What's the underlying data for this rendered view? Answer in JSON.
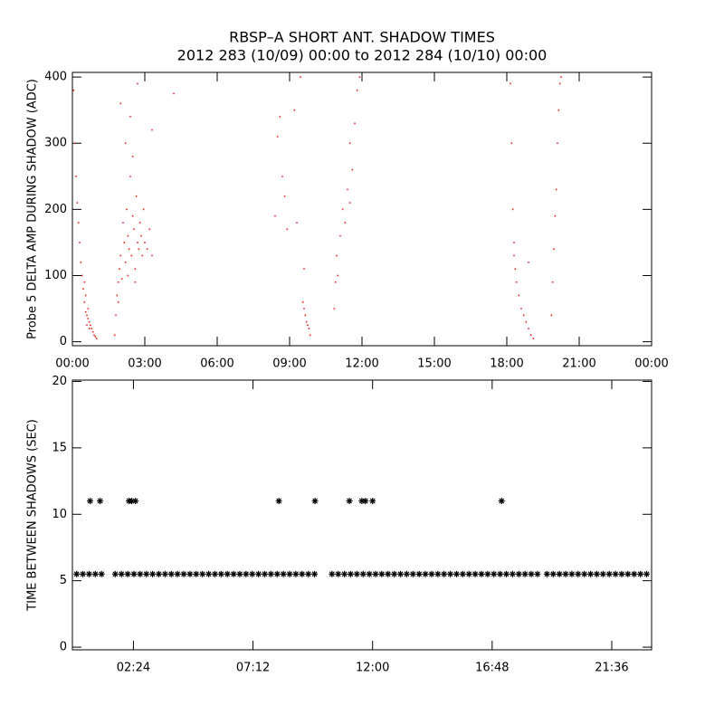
{
  "chart_data": [
    {
      "type": "scatter",
      "title": "RBSP–A SHORT ANT. SHADOW TIMES",
      "subtitle": "2012 283 (10/09) 00:00 to 2012 284 (10/10) 00:00",
      "y_label": "Probe 5 DELTA AMP DURING SHADOW (ADC)",
      "xlim": [
        0,
        24
      ],
      "ylim": [
        -6,
        407
      ],
      "xticks": [
        {
          "value": 0,
          "label": "00:00"
        },
        {
          "value": 3,
          "label": "03:00"
        },
        {
          "value": 6,
          "label": "06:00"
        },
        {
          "value": 9,
          "label": "09:00"
        },
        {
          "value": 12,
          "label": "12:00"
        },
        {
          "value": 15,
          "label": "15:00"
        },
        {
          "value": 18,
          "label": "18:00"
        },
        {
          "value": 21,
          "label": "21:00"
        },
        {
          "value": 24,
          "label": "00:00"
        }
      ],
      "yticks": [
        0,
        100,
        200,
        300,
        400
      ],
      "marker": "dot",
      "series": [
        {
          "color": "#e8261c",
          "x": [
            0.05,
            0.1,
            0.15,
            0.2,
            0.25,
            0.3,
            0.35,
            0.4,
            0.45,
            0.5,
            0.55,
            0.6,
            0.65,
            0.7,
            0.75,
            0.8,
            0.85,
            0.9,
            0.95,
            1.0,
            0.5,
            0.55,
            0.65,
            0.7,
            0.6,
            1.75,
            1.8,
            1.85,
            1.9,
            1.95,
            2.0,
            2.05,
            2.1,
            2.15,
            2.2,
            2.25,
            2.3,
            2.35,
            2.4,
            2.45,
            2.5,
            2.55,
            2.6,
            2.65,
            2.7,
            2.75,
            2.8,
            2.85,
            2.9,
            2.95,
            3.0,
            3.1,
            3.2,
            3.3,
            2.0,
            2.2,
            2.4,
            2.5,
            2.7,
            3.3,
            1.9,
            2.3,
            2.6,
            4.2,
            8.4,
            8.5,
            8.6,
            8.7,
            8.8,
            8.9,
            9.2,
            9.3,
            9.45,
            9.55,
            9.6,
            9.65,
            9.7,
            9.75,
            9.8,
            9.85,
            9.6,
            10.85,
            10.9,
            10.95,
            11.0,
            11.1,
            11.2,
            11.3,
            11.4,
            11.5,
            11.6,
            11.7,
            11.8,
            11.9,
            11.5,
            18.15,
            18.2,
            18.25,
            18.3,
            18.35,
            18.4,
            18.5,
            18.6,
            18.7,
            18.8,
            18.9,
            19.0,
            19.1,
            18.3,
            18.9,
            19.85,
            19.9,
            19.95,
            20.0,
            20.05,
            20.1,
            20.15,
            20.2,
            20.25
          ],
          "values": [
            380,
            300,
            250,
            210,
            180,
            150,
            120,
            100,
            80,
            60,
            45,
            40,
            35,
            30,
            25,
            20,
            15,
            10,
            8,
            5,
            90,
            70,
            50,
            20,
            25,
            10,
            40,
            70,
            90,
            110,
            130,
            95,
            180,
            150,
            120,
            200,
            160,
            140,
            250,
            130,
            190,
            170,
            110,
            220,
            150,
            140,
            180,
            160,
            130,
            200,
            150,
            140,
            170,
            130,
            360,
            300,
            340,
            280,
            390,
            320,
            60,
            100,
            90,
            375,
            190,
            310,
            340,
            250,
            220,
            170,
            350,
            180,
            400,
            60,
            50,
            40,
            30,
            25,
            20,
            10,
            110,
            50,
            90,
            130,
            100,
            160,
            200,
            180,
            230,
            210,
            260,
            330,
            380,
            400,
            300,
            390,
            300,
            200,
            130,
            110,
            90,
            70,
            50,
            40,
            30,
            20,
            10,
            5,
            150,
            120,
            40,
            90,
            140,
            190,
            230,
            300,
            350,
            390,
            400
          ]
        }
      ]
    },
    {
      "type": "scatter",
      "y_label": "TIME BETWEEN SHADOWS (SEC)",
      "xlim": [
        -0.05,
        23.2
      ],
      "ylim": [
        -0.2,
        20.1
      ],
      "xticks": [
        {
          "value": 2.4,
          "label": "02:24"
        },
        {
          "value": 7.2,
          "label": "07:12"
        },
        {
          "value": 12,
          "label": "12:00"
        },
        {
          "value": 16.8,
          "label": "16:48"
        },
        {
          "value": 21.6,
          "label": "21:36"
        }
      ],
      "yticks": [
        0,
        5,
        10,
        15,
        20
      ],
      "marker": "asterisk",
      "series": [
        {
          "color": "#000000",
          "x": [
            0.12,
            0.37,
            0.62,
            0.87,
            1.12,
            1.67,
            1.92,
            2.17,
            2.42,
            2.67,
            2.92,
            3.17,
            3.42,
            3.67,
            3.92,
            4.17,
            4.42,
            4.67,
            4.92,
            5.17,
            5.42,
            5.67,
            5.92,
            6.17,
            6.42,
            6.67,
            6.92,
            7.17,
            7.42,
            7.67,
            7.92,
            8.17,
            8.42,
            8.67,
            8.92,
            9.17,
            9.42,
            9.67,
            10.37,
            10.62,
            10.87,
            11.12,
            11.37,
            11.62,
            11.87,
            12.12,
            12.37,
            12.62,
            12.87,
            13.12,
            13.37,
            13.62,
            13.87,
            14.12,
            14.37,
            14.62,
            14.87,
            15.12,
            15.37,
            15.62,
            15.87,
            16.12,
            16.37,
            16.62,
            16.87,
            17.12,
            17.37,
            17.62,
            17.87,
            18.12,
            18.37,
            18.62,
            19.0,
            19.25,
            19.5,
            19.75,
            20.0,
            20.25,
            20.5,
            20.75,
            21.0,
            21.25,
            21.5,
            21.75,
            22.0,
            22.25,
            22.5,
            22.75,
            23.0,
            0.66,
            1.06,
            2.22,
            2.33,
            2.48,
            8.24,
            9.69,
            11.07,
            11.57,
            11.71,
            12.0,
            17.18
          ],
          "values": [
            5.5,
            5.5,
            5.5,
            5.5,
            5.5,
            5.5,
            5.5,
            5.5,
            5.5,
            5.5,
            5.5,
            5.5,
            5.5,
            5.5,
            5.5,
            5.5,
            5.5,
            5.5,
            5.5,
            5.5,
            5.5,
            5.5,
            5.5,
            5.5,
            5.5,
            5.5,
            5.5,
            5.5,
            5.5,
            5.5,
            5.5,
            5.5,
            5.5,
            5.5,
            5.5,
            5.5,
            5.5,
            5.5,
            5.5,
            5.5,
            5.5,
            5.5,
            5.5,
            5.5,
            5.5,
            5.5,
            5.5,
            5.5,
            5.5,
            5.5,
            5.5,
            5.5,
            5.5,
            5.5,
            5.5,
            5.5,
            5.5,
            5.5,
            5.5,
            5.5,
            5.5,
            5.5,
            5.5,
            5.5,
            5.5,
            5.5,
            5.5,
            5.5,
            5.5,
            5.5,
            5.5,
            5.5,
            5.5,
            5.5,
            5.5,
            5.5,
            5.5,
            5.5,
            5.5,
            5.5,
            5.5,
            5.5,
            5.5,
            5.5,
            5.5,
            5.5,
            5.5,
            5.5,
            5.5,
            11,
            11,
            11,
            11,
            11,
            11,
            11,
            11,
            11,
            11,
            11,
            11
          ]
        }
      ]
    }
  ]
}
